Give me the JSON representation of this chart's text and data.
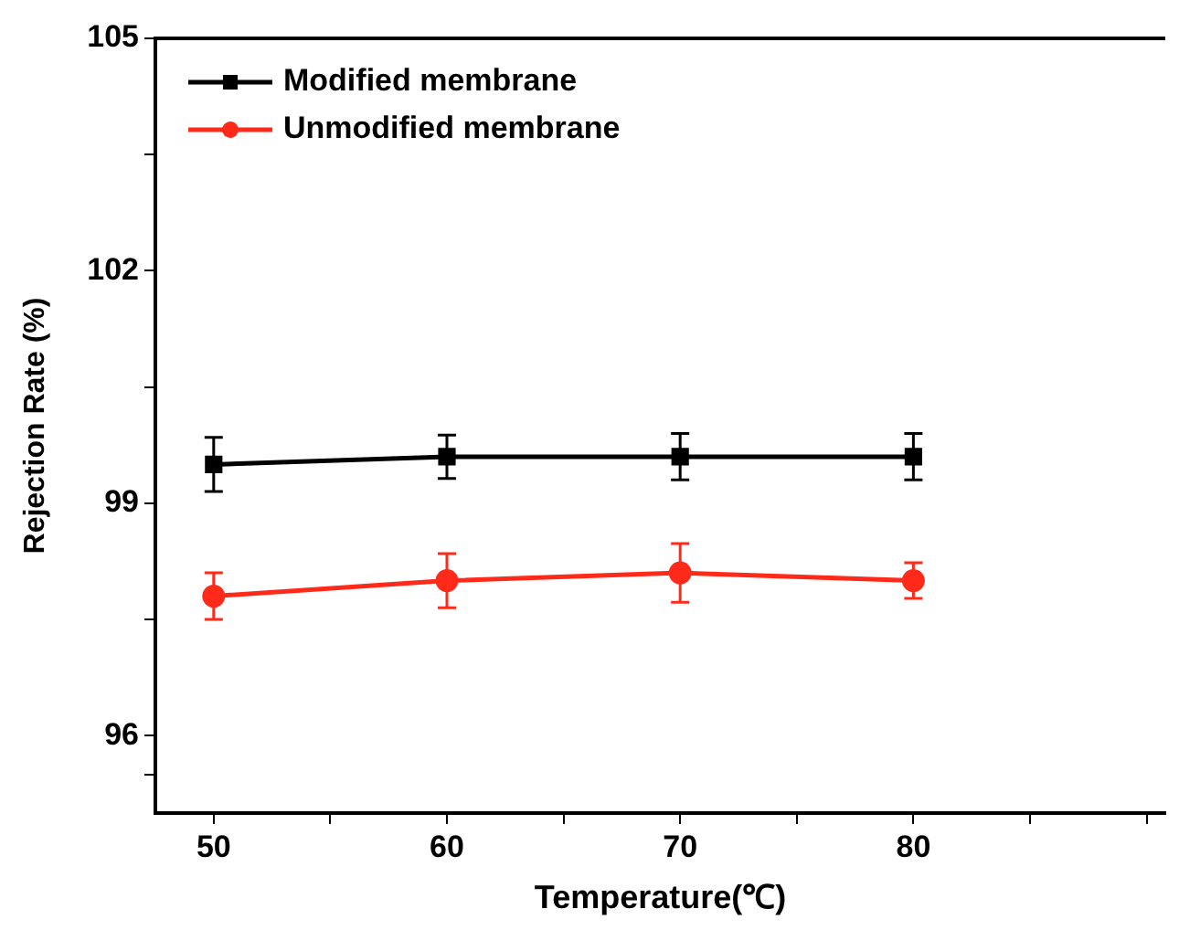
{
  "chart_data": {
    "type": "line",
    "xlabel": "Temperature(℃)",
    "ylabel": "Rejection Rate (%)",
    "x": [
      50,
      60,
      70,
      80
    ],
    "series": [
      {
        "name": "Modified membrane",
        "color": "#000000",
        "marker": "square",
        "values": [
          99.5,
          99.6,
          99.6,
          99.6
        ],
        "errors": [
          0.35,
          0.28,
          0.3,
          0.3
        ]
      },
      {
        "name": "Unmodified membrane",
        "color": "#ff2a1a",
        "marker": "circle",
        "values": [
          97.8,
          98.0,
          98.1,
          98.0
        ],
        "errors": [
          0.3,
          0.35,
          0.38,
          0.23
        ]
      }
    ],
    "xlim": [
      47.5,
      90.8
    ],
    "xticks": [
      50,
      {
        "value": 55,
        "label": null
      },
      60,
      {
        "value": 65,
        "label": null
      },
      70,
      {
        "value": 75,
        "label": null
      },
      80,
      {
        "value": 85,
        "label": null
      },
      {
        "value": 90,
        "label": null
      }
    ],
    "ylim": [
      95,
      105
    ],
    "yticks": [
      {
        "value": 95.5,
        "label": null
      },
      96,
      {
        "value": 97.5,
        "label": null
      },
      99,
      {
        "value": 100.5,
        "label": null
      },
      102,
      {
        "value": 103.5,
        "label": null
      },
      105
    ],
    "grid": false,
    "legend": "top left",
    "line_style": "solid"
  }
}
